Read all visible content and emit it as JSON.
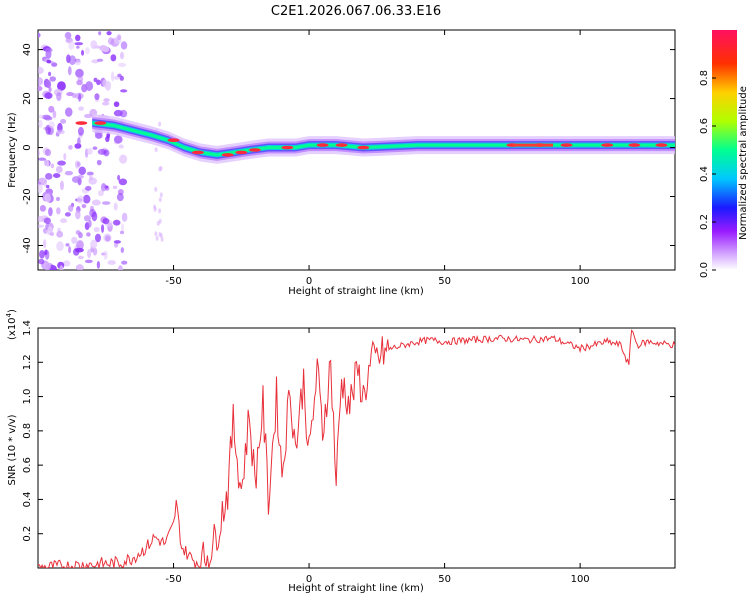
{
  "title": "C2E1.2026.067.06.33.E16",
  "chart_data": [
    {
      "type": "heatmap",
      "xlabel": "Height of straight line (km)",
      "ylabel": "Frequency (Hz)",
      "xlim": [
        -100,
        135
      ],
      "ylim": [
        -50,
        48
      ],
      "x_ticks": [
        -50,
        0,
        50,
        100
      ],
      "y_ticks": [
        -40,
        -20,
        0,
        20,
        40
      ],
      "colorbar": {
        "label": "Normalized spectral amplitude",
        "range": [
          0,
          1
        ],
        "ticks": [
          "0.0",
          "0.2",
          "0.4",
          "0.6",
          "0.8"
        ],
        "colormap": [
          "#ffffff",
          "#d8b0ff",
          "#9a1cff",
          "#1a1aff",
          "#00c8ff",
          "#00ff90",
          "#b0ff00",
          "#ffd000",
          "#ff3000",
          "#ff1060"
        ]
      },
      "ridge": [
        {
          "x": -80,
          "y": 10
        },
        {
          "x": -72,
          "y": 9
        },
        {
          "x": -65,
          "y": 7
        },
        {
          "x": -58,
          "y": 5
        },
        {
          "x": -52,
          "y": 3
        },
        {
          "x": -46,
          "y": 0
        },
        {
          "x": -40,
          "y": -2
        },
        {
          "x": -34,
          "y": -3
        },
        {
          "x": -28,
          "y": -2
        },
        {
          "x": -22,
          "y": -1
        },
        {
          "x": -15,
          "y": 0
        },
        {
          "x": -5,
          "y": 0
        },
        {
          "x": 0,
          "y": 1
        },
        {
          "x": 10,
          "y": 1
        },
        {
          "x": 20,
          "y": 0
        },
        {
          "x": 40,
          "y": 1
        },
        {
          "x": 60,
          "y": 1
        },
        {
          "x": 80,
          "y": 1
        },
        {
          "x": 100,
          "y": 1
        },
        {
          "x": 120,
          "y": 1
        },
        {
          "x": 135,
          "y": 1
        }
      ]
    },
    {
      "type": "line",
      "xlabel": "Height of straight line (km)",
      "ylabel": "SNR (10 * v/v)",
      "multiplier": "(x10",
      "multiplier_exp": "4",
      "multiplier_close": ")",
      "xlim": [
        -100,
        135
      ],
      "ylim": [
        0,
        1.4
      ],
      "x_ticks": [
        -50,
        0,
        50,
        100
      ],
      "y_ticks": [
        0.2,
        0.4,
        0.6,
        0.8,
        1.0,
        1.2,
        1.4
      ],
      "line_color": "#e8303a",
      "series": [
        {
          "x": [
            -100,
            -90,
            -80,
            -70,
            -65,
            -60,
            -57,
            -53,
            -50,
            -49,
            -47,
            -43,
            -40,
            -35,
            -30,
            -28,
            -25,
            -22,
            -20,
            -17,
            -15,
            -12,
            -10,
            -7,
            -5,
            -2,
            0,
            3,
            5,
            8,
            10,
            12,
            15,
            18,
            20,
            23,
            25,
            30,
            35,
            40,
            45,
            50,
            60,
            70,
            80,
            90,
            100,
            110,
            115,
            118,
            119,
            121,
            125,
            130,
            135
          ],
          "y": [
            0.0,
            0.01,
            0.02,
            0.03,
            0.06,
            0.12,
            0.18,
            0.14,
            0.25,
            0.38,
            0.12,
            0.05,
            0.02,
            0.15,
            0.45,
            0.85,
            0.45,
            0.9,
            0.5,
            0.95,
            0.4,
            1.0,
            0.55,
            1.05,
            0.7,
            1.1,
            0.65,
            1.15,
            0.8,
            1.2,
            0.5,
            1.1,
            0.95,
            1.15,
            1.0,
            1.2,
            1.22,
            1.28,
            1.3,
            1.32,
            1.33,
            1.32,
            1.33,
            1.34,
            1.33,
            1.34,
            1.28,
            1.32,
            1.3,
            1.18,
            1.4,
            1.3,
            1.32,
            1.31,
            1.3
          ]
        }
      ]
    }
  ]
}
